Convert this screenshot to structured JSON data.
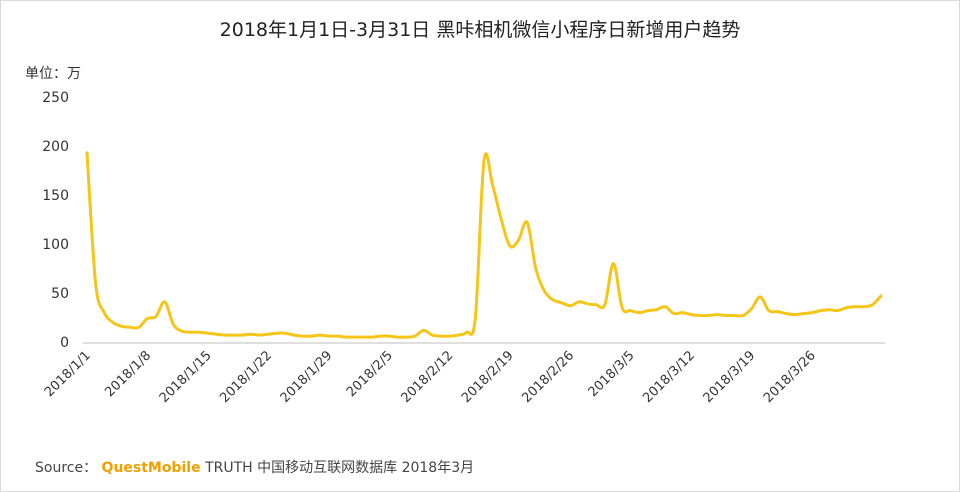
{
  "title": "2018年1月1日-3月31日 黑咔相机微信小程序日新增用户趋势",
  "unit": "单位：万",
  "source": {
    "label": "Source：",
    "brand": "QuestMobile",
    "text": "TRUTH 中国移动互联网数据库 2018年3月"
  },
  "colors": {
    "line": "#F5C518",
    "axis": "#bfbfbf",
    "text": "#333333",
    "brand": "#F0A000"
  },
  "chart_data": {
    "type": "line",
    "title": "2018年1月1日-3月31日 黑咔相机微信小程序日新增用户趋势",
    "ylabel": "单位：万",
    "xlabel": "",
    "ylim": [
      0,
      250
    ],
    "yticks": [
      0,
      50,
      100,
      150,
      200,
      250
    ],
    "grid": false,
    "xtick_labels": [
      "2018/1/1",
      "2018/1/8",
      "2018/1/15",
      "2018/1/22",
      "2018/1/29",
      "2018/2/5",
      "2018/2/12",
      "2018/2/19",
      "2018/2/26",
      "2018/3/5",
      "2018/3/12",
      "2018/3/19",
      "2018/3/26"
    ],
    "series": [
      {
        "values": [
          193,
          60,
          30,
          20,
          16,
          15,
          15,
          24,
          26,
          41,
          18,
          11,
          10,
          10,
          9,
          8,
          7,
          7,
          7,
          8,
          7,
          8,
          9,
          9,
          7,
          6,
          6,
          7,
          6,
          6,
          5,
          5,
          5,
          5,
          6,
          6,
          5,
          5,
          6,
          12,
          7,
          6,
          6,
          7,
          10,
          25,
          185,
          160,
          125,
          98,
          104,
          122,
          75,
          52,
          43,
          40,
          37,
          41,
          39,
          38,
          38,
          80,
          35,
          32,
          30,
          32,
          33,
          36,
          29,
          30,
          28,
          27,
          27,
          28,
          27,
          27,
          27,
          34,
          46,
          32,
          31,
          29,
          28,
          29,
          30,
          32,
          33,
          32,
          35,
          36,
          36,
          38,
          47
        ]
      }
    ]
  }
}
